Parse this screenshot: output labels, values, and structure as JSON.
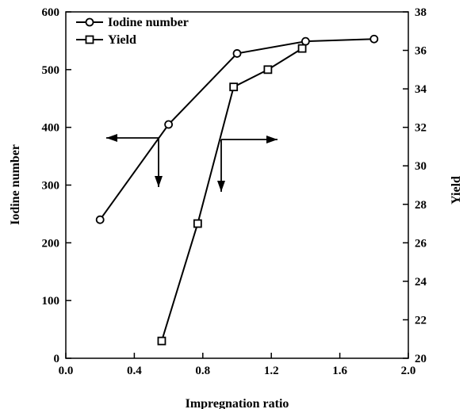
{
  "chart_data": {
    "type": "line",
    "xlabel": "Impregnation ratio",
    "ylabel": "Iodine number",
    "y2label": "Yield",
    "xlim": [
      0.0,
      2.0
    ],
    "ylim": [
      0,
      600
    ],
    "y2lim": [
      20,
      38
    ],
    "x_ticks": [
      "0.0",
      "0.4",
      "0.8",
      "1.2",
      "1.6",
      "2.0"
    ],
    "x_tick_values": [
      0.0,
      0.4,
      0.8,
      1.2,
      1.6,
      2.0
    ],
    "y_ticks": [
      "0",
      "100",
      "200",
      "300",
      "400",
      "500",
      "600"
    ],
    "y_tick_values": [
      0,
      100,
      200,
      300,
      400,
      500,
      600
    ],
    "y2_ticks": [
      "20",
      "22",
      "24",
      "26",
      "28",
      "30",
      "32",
      "34",
      "36",
      "38"
    ],
    "y2_tick_values": [
      20,
      22,
      24,
      26,
      28,
      30,
      32,
      34,
      36,
      38
    ],
    "grid": false,
    "legend": "top-left",
    "series": [
      {
        "name": "Iodine number",
        "axis": "left",
        "marker": "circle",
        "x": [
          0.2,
          0.6,
          1.0,
          1.4,
          1.8
        ],
        "y": [
          240,
          405,
          528,
          549,
          553
        ]
      },
      {
        "name": "Yield",
        "axis": "right",
        "marker": "square",
        "x": [
          0.56,
          0.77,
          0.98,
          1.18,
          1.38
        ],
        "y": [
          20.9,
          27.0,
          34.1,
          35.0,
          36.1
        ]
      }
    ],
    "annotations": [
      {
        "type": "arrow",
        "meaning": "iodine-series-left-axis"
      },
      {
        "type": "arrow",
        "meaning": "yield-series-right-axis"
      }
    ]
  }
}
